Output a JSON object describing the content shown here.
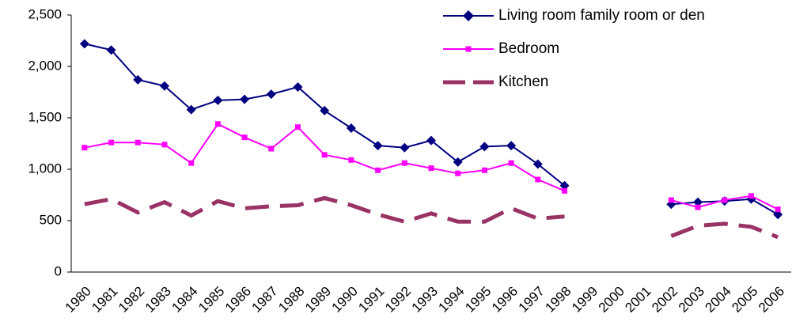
{
  "chart_data": {
    "type": "line",
    "categories": [
      "1980",
      "1981",
      "1982",
      "1983",
      "1984",
      "1985",
      "1986",
      "1987",
      "1988",
      "1989",
      "1990",
      "1991",
      "1992",
      "1993",
      "1994",
      "1995",
      "1996",
      "1997",
      "1998",
      "1999",
      "2000",
      "2001",
      "2002",
      "2003",
      "2004",
      "2005",
      "2006"
    ],
    "series": [
      {
        "name": "Living room family room or den",
        "color": "#000080",
        "marker": "diamond",
        "dash": "solid",
        "values": [
          2220,
          2160,
          1870,
          1810,
          1580,
          1670,
          1680,
          1730,
          1800,
          1570,
          1400,
          1230,
          1210,
          1280,
          1070,
          1220,
          1230,
          1050,
          840,
          null,
          null,
          null,
          660,
          680,
          690,
          710,
          560
        ]
      },
      {
        "name": "Bedroom",
        "color": "#ff00ff",
        "marker": "square",
        "dash": "solid",
        "values": [
          1210,
          1260,
          1260,
          1240,
          1060,
          1440,
          1310,
          1200,
          1410,
          1140,
          1090,
          990,
          1060,
          1010,
          960,
          990,
          1060,
          900,
          790,
          null,
          null,
          null,
          700,
          630,
          700,
          740,
          610
        ]
      },
      {
        "name": "Kitchen",
        "color": "#993366",
        "marker": "none",
        "dash": "dashed",
        "values": [
          660,
          710,
          580,
          680,
          550,
          690,
          620,
          640,
          650,
          720,
          650,
          560,
          490,
          570,
          490,
          490,
          620,
          520,
          540,
          null,
          null,
          null,
          350,
          450,
          470,
          440,
          340
        ]
      }
    ],
    "ylim": [
      0,
      2500
    ],
    "yticks": [
      0,
      500,
      {
        "value": 1000,
        "label": "1,000"
      },
      {
        "value": 1500,
        "label": "1,500"
      },
      {
        "value": 2000,
        "label": "2,000"
      },
      {
        "value": 2500,
        "label": "2,500"
      }
    ],
    "grid": false,
    "legend": "top-right"
  }
}
